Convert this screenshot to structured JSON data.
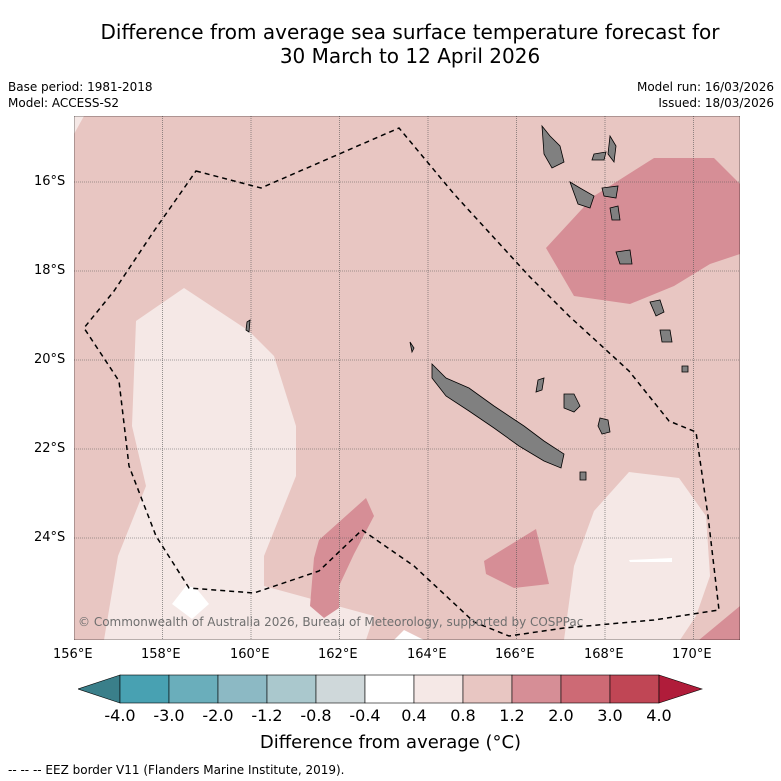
{
  "title_line1": "Difference from average sea surface temperature forecast for",
  "title_line2": "30 March to 12 April 2026",
  "base_period": "Base period: 1981-2018",
  "model": "Model: ACCESS-S2",
  "model_run": "Model run: 16/03/2026",
  "issued": "Issued: 18/03/2026",
  "copyright": "© Commonwealth of Australia 2026, Bureau of Meteorology, supported by COSPPac",
  "lat_ticks": [
    "16°S",
    "18°S",
    "20°S",
    "22°S",
    "24°S"
  ],
  "lon_ticks": [
    "156°E",
    "158°E",
    "160°E",
    "162°E",
    "164°E",
    "166°E",
    "168°E",
    "170°E"
  ],
  "colorbar": {
    "labels": [
      "-4.0",
      "-3.0",
      "-2.0",
      "-1.2",
      "-0.8",
      "-0.4",
      "0.4",
      "0.8",
      "1.2",
      "2.0",
      "3.0",
      "4.0"
    ],
    "colors": [
      "#3a7f8a",
      "#48a1b2",
      "#6aaebb",
      "#8cb9c4",
      "#aac8cd",
      "#cfd8da",
      "#ffffff",
      "#f5e8e6",
      "#e8c6c2",
      "#d68e96",
      "#cd6a75",
      "#c04655",
      "#b01c3a"
    ],
    "title": "Difference from average (°C)"
  },
  "footnote": "--  --  -- EEZ border V11 (Flanders Marine Institute, 2019).",
  "colors": {
    "land": "#808080",
    "base": "#e8c6c2",
    "light": "#f5e8e6",
    "warm": "#d68e96",
    "white": "#ffffff"
  }
}
